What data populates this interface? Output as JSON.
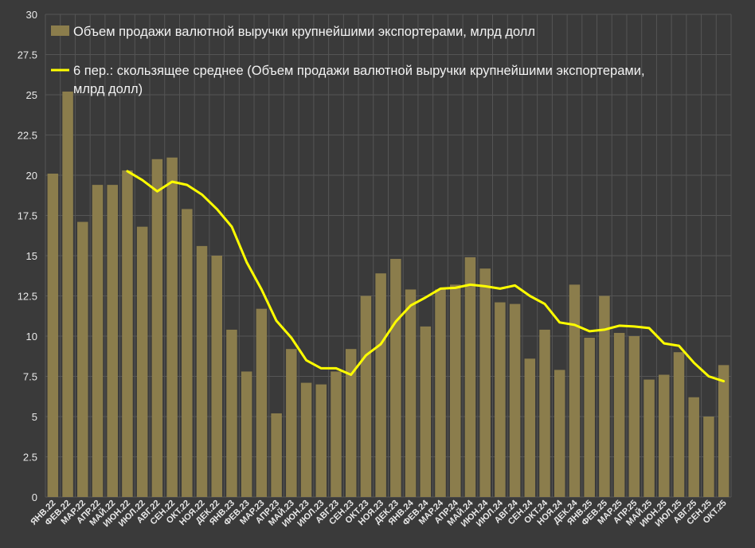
{
  "chart_data": {
    "type": "bar",
    "categories": [
      "ЯНВ.22",
      "ФЕВ.22",
      "МАР.22",
      "АПР.22",
      "МАЙ.22",
      "ИЮН.22",
      "ИЮЛ.22",
      "АВГ.22",
      "СЕН.22",
      "ОКТ.22",
      "НОЯ.22",
      "ДЕК.22",
      "ЯНВ.23",
      "ФЕВ.23",
      "МАР.23",
      "АПР.23",
      "МАЙ.23",
      "ИЮН.23",
      "ИЮЛ.23",
      "АВГ.23",
      "СЕН.23",
      "ОКТ.23",
      "НОЯ.23",
      "ДЕК.23",
      "ЯНВ.24",
      "ФЕВ.24",
      "МАР.24",
      "АПР.24",
      "МАЙ.24",
      "ИЮН.24",
      "ИЮЛ.24",
      "АВГ.24",
      "СЕН.24",
      "ОКТ.24",
      "НОЯ.24",
      "ДЕК.24",
      "ЯНВ.25",
      "ФЕВ.25",
      "МАР.25",
      "АПР.25",
      "МАЙ.25",
      "ИЮН.25",
      "ИЮЛ.25",
      "АВГ.25",
      "СЕН.25",
      "ОКТ.25"
    ],
    "series": [
      {
        "name": "Объем продажи  валютной выручки крупнейшими экспортерами, млрд долл",
        "kind": "bar",
        "color": "#8b7d4c",
        "values": [
          20.1,
          25.2,
          17.1,
          19.4,
          19.4,
          20.3,
          16.8,
          21.0,
          21.1,
          17.9,
          15.6,
          15.0,
          10.4,
          7.8,
          11.7,
          5.2,
          9.2,
          7.1,
          7.0,
          7.8,
          9.2,
          12.5,
          13.9,
          14.8,
          12.9,
          10.6,
          12.9,
          13.2,
          14.9,
          14.2,
          12.1,
          12.0,
          8.6,
          10.4,
          7.9,
          13.2,
          9.9,
          12.5,
          10.2,
          10.0,
          7.3,
          7.6,
          9.0,
          6.2,
          5.0,
          8.2
        ]
      },
      {
        "name": "6 пер.: скользящее среднее (Объем продажи  валютной выручки крупнейшими экспортерами, млрд долл)",
        "kind": "line",
        "color": "#ffff00",
        "values": [
          null,
          null,
          null,
          null,
          null,
          20.25,
          19.7,
          19.0,
          19.6,
          19.4,
          18.8,
          17.9,
          16.8,
          14.6,
          12.9,
          10.95,
          9.9,
          8.5,
          8.0,
          8.0,
          7.6,
          8.8,
          9.5,
          10.9,
          11.9,
          12.4,
          12.95,
          13.0,
          13.2,
          13.1,
          12.95,
          13.15,
          12.5,
          12.0,
          10.85,
          10.7,
          10.3,
          10.4,
          10.65,
          10.6,
          10.5,
          9.55,
          9.4,
          8.35,
          7.5,
          7.2
        ]
      }
    ],
    "y_ticks": [
      "0",
      "2.5",
      "5",
      "7.5",
      "10",
      "12.5",
      "15",
      "17.5",
      "20",
      "22.5",
      "25",
      "27.5",
      "30"
    ],
    "ylim": [
      0,
      30
    ],
    "grid": true,
    "legend_position": "top-left",
    "legend_lines": {
      "bar": [
        "Объем продажи  валютной выручки крупнейшими экспортерами, млрд долл"
      ],
      "line": [
        "6 пер.: скользящее среднее (Объем продажи  валютной выручки крупнейшими экспортерами,",
        "млрд долл)"
      ]
    },
    "colors": {
      "background": "#3a3a3a",
      "grid": "#555555",
      "text": "#e8e8e8"
    }
  }
}
